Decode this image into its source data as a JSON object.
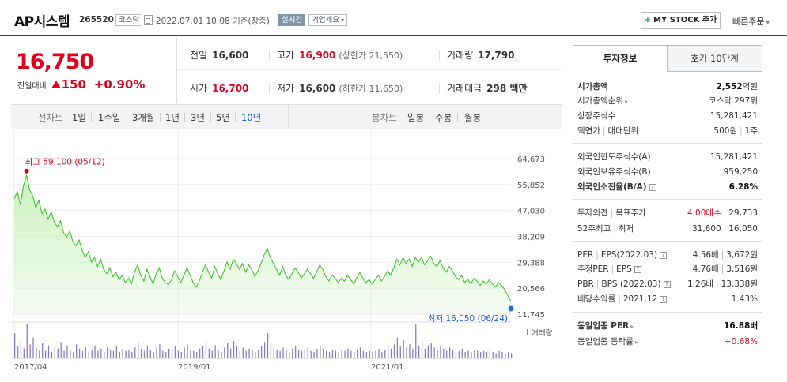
{
  "header": {
    "title": "AP시스템",
    "code": "265520",
    "market_tag": "코스닥",
    "datetime": "2022.07.01 10:08",
    "basis": "기준(장중)",
    "realtime_badge": "실시간",
    "company_overview": "기업개요",
    "my_stock_label": "MY STOCK 추가",
    "quick_order": "빠른주문"
  },
  "price": {
    "current": "16,750",
    "change_label": "전일대비",
    "change_value": "150",
    "change_percent": "+0.90%"
  },
  "quote": {
    "prev_close_label": "전일",
    "prev_close": "16,600",
    "high_label": "고가",
    "high": "16,900",
    "upper_limit": "(상한가 21,550)",
    "volume_label": "거래량",
    "volume": "17,790",
    "open_label": "시가",
    "open": "16,700",
    "low_label": "저가",
    "low": "16,600",
    "lower_limit": "(하한가 11,650)",
    "trade_value_label": "거래대금",
    "trade_value": "298 백만"
  },
  "periods": {
    "line_label": "선차트",
    "line_items": [
      "1일",
      "1주일",
      "3개월",
      "1년",
      "3년",
      "5년",
      "10년"
    ],
    "active": "10년",
    "candle_label": "봉차트",
    "candle_items": [
      "일봉",
      "주봉",
      "월봉"
    ]
  },
  "chart": {
    "high_annotation": "최고 59,100 (05/12)",
    "low_annotation": "최저 16,050 (06/24)",
    "volume_legend": "거래량",
    "accent": "#33c021",
    "fill": "#c8f0b8"
  },
  "chart_data": {
    "type": "area",
    "y_ticks": [
      "64,673",
      "55,852",
      "47,030",
      "38,209",
      "29,388",
      "20,566",
      "11,745"
    ],
    "ylim": [
      11745,
      64673
    ],
    "x_ticks": [
      "2017/04",
      "2019/01",
      "2021/01"
    ],
    "series": [
      {
        "values": [
          51000,
          53500,
          49000,
          55500,
          59100,
          54000,
          52000,
          48000,
          50500,
          46000,
          47500,
          44000,
          46500,
          43000,
          41500,
          43500,
          39500,
          38000,
          40000,
          36500,
          35000,
          37000,
          33500,
          31000,
          33000,
          29500,
          31000,
          28000,
          30500,
          27000,
          25500,
          27500,
          24500,
          26000,
          23500,
          25000,
          22500,
          24000,
          22000,
          26000,
          28500,
          25000,
          23000,
          27000,
          24500,
          22000,
          25500,
          27500,
          24000,
          22500,
          21800,
          23500,
          26500,
          24500,
          22500,
          25000,
          27500,
          25000,
          22500,
          21000,
          23000,
          26000,
          28500,
          26000,
          24000,
          28000,
          25500,
          23500,
          26500,
          29500,
          27000,
          30500,
          29000,
          27000,
          29000,
          26000,
          28500,
          27000,
          24500,
          26500,
          29000,
          32000,
          34000,
          31000,
          29000,
          27000,
          25000,
          28000,
          25000,
          23500,
          25500,
          27500,
          26000,
          24000,
          25500,
          27000,
          25500,
          24000,
          26000,
          28500,
          27000,
          24500,
          23000,
          25000,
          24000,
          22500,
          24000,
          23000,
          25000,
          23500,
          22000,
          24000,
          26000,
          24000,
          22500,
          23500,
          22000,
          23500,
          25000,
          23000,
          24500,
          26500,
          25000,
          27500,
          30500,
          28500,
          31000,
          29000,
          30500,
          28000,
          31000,
          29500,
          31000,
          28500,
          30000,
          31500,
          29000,
          28000,
          30000,
          27500,
          26000,
          28000,
          26500,
          24500,
          23500,
          25000,
          22500,
          23500,
          22000,
          24000,
          23000,
          21500,
          23000,
          22000,
          23500,
          22000,
          21000,
          22500,
          21500,
          20000,
          18000,
          16050
        ]
      }
    ],
    "high_point": {
      "value": 59100,
      "label": "최고 59,100 (05/12)"
    },
    "low_point": {
      "value": 16050,
      "label": "최저 16,050 (06/24)"
    },
    "volume_bars": [
      22,
      10,
      14,
      8,
      30,
      12,
      18,
      9,
      7,
      13,
      6,
      11,
      5,
      9,
      8,
      14,
      6,
      10,
      7,
      5,
      12,
      8,
      6,
      9,
      5,
      7,
      11,
      6,
      8,
      5,
      9,
      7,
      6,
      10,
      5,
      8,
      6,
      7,
      5,
      9,
      14,
      8,
      6,
      11,
      7,
      5,
      9,
      12,
      6,
      5,
      8,
      7,
      10,
      6,
      5,
      9,
      12,
      7,
      6,
      5,
      8,
      10,
      14,
      8,
      6,
      11,
      7,
      5,
      9,
      13,
      8,
      15,
      10,
      7,
      9,
      6,
      8,
      7,
      5,
      7,
      10,
      14,
      22,
      12,
      9,
      7,
      6,
      9,
      7,
      5,
      8,
      10,
      7,
      6,
      7,
      9,
      6,
      5,
      8,
      11,
      8,
      6,
      5,
      7,
      6,
      5,
      7,
      6,
      8,
      6,
      5,
      7,
      9,
      6,
      5,
      6,
      5,
      6,
      8,
      5,
      7,
      10,
      8,
      12,
      18,
      10,
      16,
      9,
      12,
      8,
      30,
      10,
      14,
      8,
      11,
      13,
      9,
      7,
      10,
      8,
      6,
      9,
      7,
      5,
      6,
      8,
      5,
      6,
      5,
      7,
      6,
      5,
      6,
      5,
      7,
      5,
      4,
      6,
      5,
      4,
      5,
      4
    ]
  },
  "panel": {
    "tabs": [
      "투자정보",
      "호가 10단계"
    ],
    "rows": {
      "market_cap_label": "시가총액",
      "market_cap": "2,552",
      "market_cap_unit": "억원",
      "market_rank_label": "시가총액순위",
      "market_rank": "코스닥 297위",
      "shares_label": "상장주식수",
      "shares": "15,281,421",
      "face_label": "액면가",
      "unit_label": "매매단위",
      "face_unit": "500원",
      "trade_unit": "1주",
      "foreign_limit_label": "외국인한도주식수(A)",
      "foreign_limit": "15,281,421",
      "foreign_hold_label": "외국인보유주식수(B)",
      "foreign_hold": "959,250",
      "foreign_ratio_label": "외국인소진율(B/A)",
      "foreign_ratio": "6.28%",
      "opinion_label": "투자의견",
      "target_label": "목표주가",
      "opinion": "4.00매수",
      "target": "29,733",
      "w52_label": "52주최고",
      "w52_low_label": "최저",
      "w52_high": "31,600",
      "w52_low": "16,050",
      "per_label": "PER",
      "eps_label": "EPS(2022.03)",
      "per": "4.56배",
      "eps": "3,672원",
      "est_per_label": "추정PER",
      "est_eps_label": "EPS",
      "est_per": "4.76배",
      "est_eps": "3,516원",
      "pbr_label": "PBR",
      "bps_label": "BPS",
      "bps_date": "(2022.03)",
      "pbr": "1.26배",
      "bps": "13,338원",
      "div_label": "배당수익률",
      "div_date": "2021.12",
      "div": "1.43%",
      "sector_per_label": "동일업종 PER",
      "sector_per": "16.88배",
      "sector_rate_label": "동일업종 등락률",
      "sector_rate": "+0.68%"
    }
  }
}
